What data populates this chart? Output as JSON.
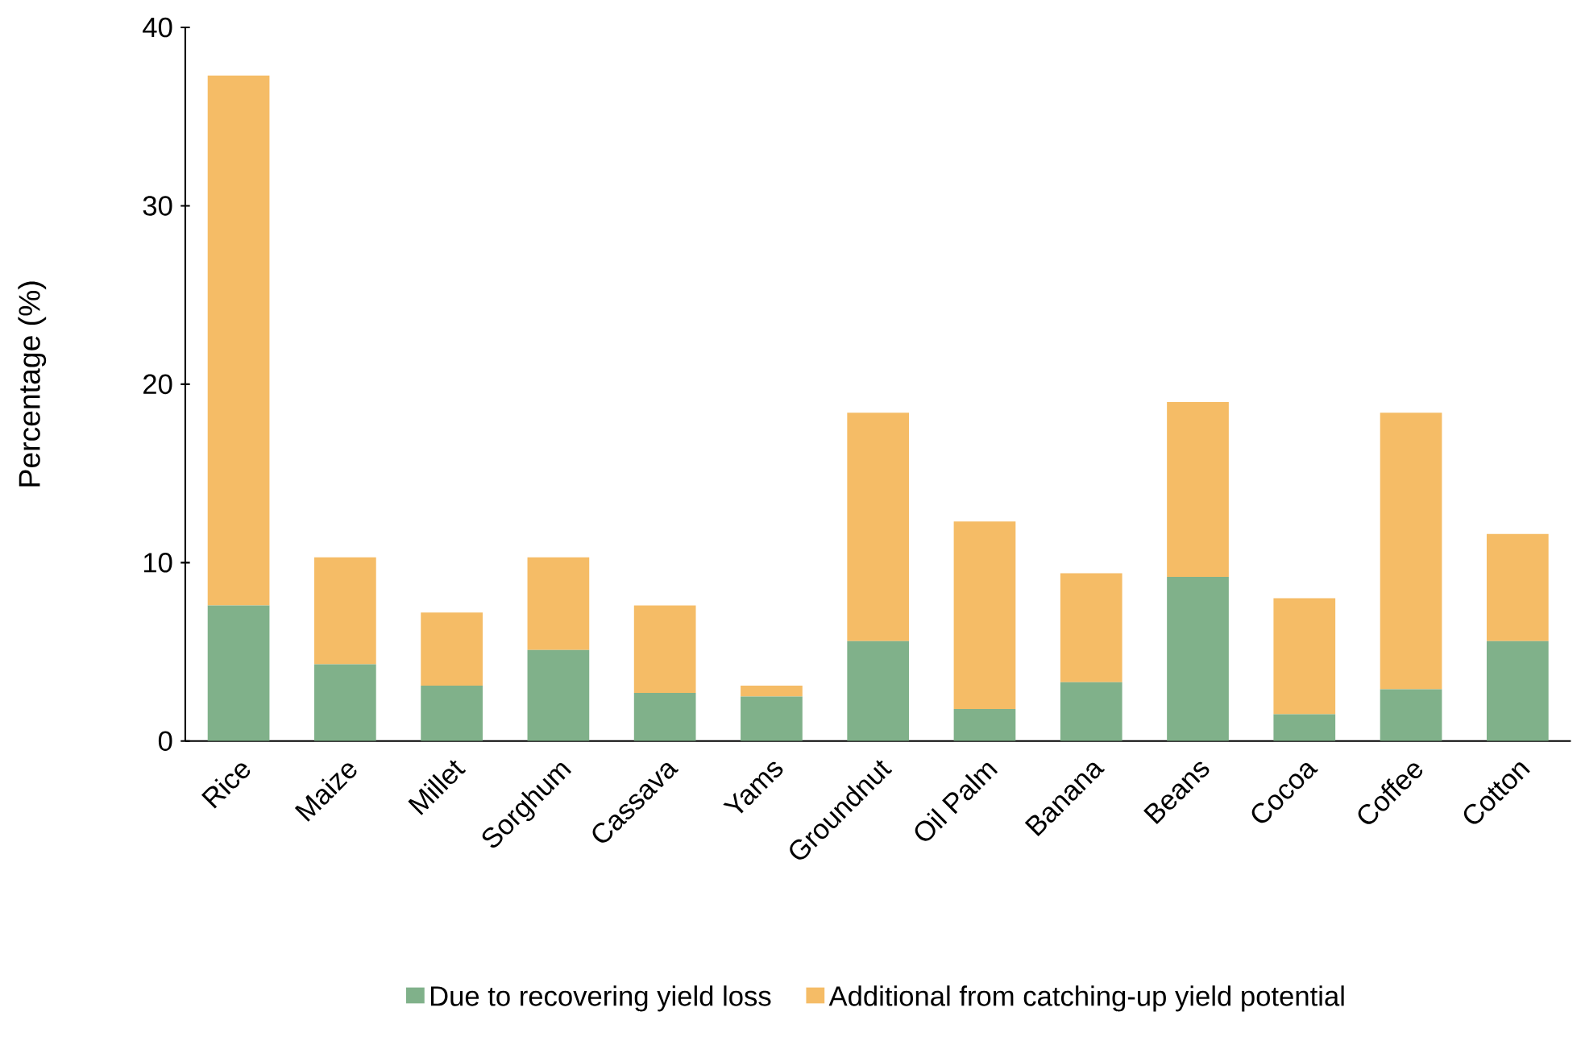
{
  "chart_data": {
    "type": "bar",
    "stacked": true,
    "ylabel": "Percentage (%)",
    "categories": [
      "Rice",
      "Maize",
      "Millet",
      "Sorghum",
      "Cassava",
      "Yams",
      "Groundnut",
      "Oil Palm",
      "Banana",
      "Beans",
      "Cocoa",
      "Coffee",
      "Cotton"
    ],
    "series": [
      {
        "name": "Due to recovering yield loss",
        "color": "#80b18a",
        "values": [
          7.6,
          4.3,
          3.1,
          5.1,
          2.7,
          2.5,
          5.6,
          1.8,
          3.3,
          9.2,
          1.5,
          2.9,
          5.6
        ]
      },
      {
        "name": "Additional from catching-up yield potential",
        "color": "#f5bc66",
        "values": [
          29.7,
          6.0,
          4.1,
          5.2,
          4.9,
          0.6,
          12.8,
          10.5,
          6.1,
          9.8,
          6.5,
          15.5,
          6.0
        ]
      }
    ],
    "ylim": [
      0,
      40
    ],
    "yticks": [
      0,
      10,
      20,
      30,
      40
    ],
    "grid": false,
    "legend": "bottom"
  }
}
